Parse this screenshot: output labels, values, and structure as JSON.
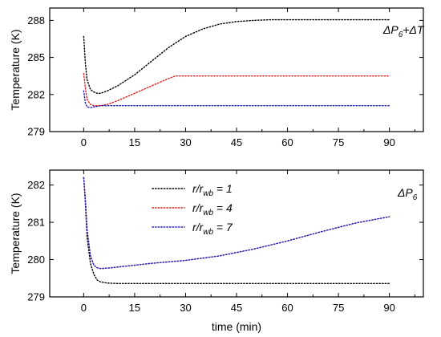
{
  "x_axis_label": "time (min)",
  "chart_data": [
    {
      "type": "line",
      "annotation": {
        "base": "ΔP",
        "sub": "6",
        "tail": "+ΔT"
      },
      "ylabel": "Temperature (K)",
      "xlim": [
        -10,
        100
      ],
      "ylim": [
        279,
        289
      ],
      "xticks": [
        0,
        15,
        30,
        45,
        60,
        75,
        90
      ],
      "yticks": [
        279,
        282,
        285,
        288
      ],
      "x_tick_labels": [
        "0",
        "15",
        "30",
        "45",
        "60",
        "75",
        "90"
      ],
      "y_tick_labels": [
        "279",
        "282",
        "285",
        "288"
      ],
      "series": [
        {
          "name": "r/rwb = 1",
          "color": "#000000",
          "x": [
            0,
            0.5,
            1,
            2,
            3,
            4,
            5,
            7,
            10,
            15,
            20,
            25,
            30,
            35,
            40,
            45,
            50,
            55,
            60,
            70,
            80,
            90
          ],
          "y": [
            286.7,
            284.5,
            283.2,
            282.4,
            282.2,
            282.1,
            282.1,
            282.3,
            282.7,
            283.6,
            284.7,
            285.8,
            286.7,
            287.3,
            287.7,
            287.9,
            288.0,
            288.05,
            288.05,
            288.05,
            288.05,
            288.05
          ]
        },
        {
          "name": "r/rwb = 4",
          "color": "#e02020",
          "x": [
            0,
            0.5,
            1,
            2,
            3,
            5,
            7,
            10,
            15,
            20,
            25,
            27,
            30,
            40,
            50,
            60,
            70,
            80,
            90
          ],
          "y": [
            283.7,
            282.5,
            281.6,
            281.2,
            281.1,
            281.1,
            281.2,
            281.5,
            282.1,
            282.7,
            283.3,
            283.5,
            283.5,
            283.5,
            283.5,
            283.5,
            283.5,
            283.5,
            283.5
          ]
        },
        {
          "name": "r/rwb = 7",
          "color": "#2020c0",
          "x": [
            0,
            0.5,
            1,
            2,
            3,
            5,
            10,
            20,
            30,
            45,
            60,
            75,
            90
          ],
          "y": [
            282.3,
            281.3,
            281.0,
            280.95,
            281.0,
            281.1,
            281.1,
            281.1,
            281.1,
            281.1,
            281.1,
            281.1,
            281.1
          ]
        }
      ]
    },
    {
      "type": "line",
      "annotation": {
        "base": "ΔP",
        "sub": "6",
        "tail": ""
      },
      "ylabel": "Temperature (K)",
      "xlim": [
        -10,
        100
      ],
      "ylim": [
        279,
        282.4
      ],
      "xticks": [
        0,
        15,
        30,
        45,
        60,
        75,
        90
      ],
      "yticks": [
        279,
        280,
        281,
        282
      ],
      "x_tick_labels": [
        "0",
        "15",
        "30",
        "45",
        "60",
        "75",
        "90"
      ],
      "y_tick_labels": [
        "279",
        "280",
        "281",
        "282"
      ],
      "legend": {
        "position": "top-left",
        "entries": [
          {
            "base": "r/r",
            "sub": "wb",
            "tail": " = 1",
            "color": "#000000"
          },
          {
            "base": "r/r",
            "sub": "wb",
            "tail": " = 4",
            "color": "#e02020"
          },
          {
            "base": "r/r",
            "sub": "wb",
            "tail": " = 7",
            "color": "#2020c0"
          }
        ]
      },
      "series": [
        {
          "name": "r/rwb = 1",
          "color": "#000000",
          "x": [
            0,
            0.5,
            1,
            2,
            3,
            4,
            5,
            7,
            10,
            20,
            30,
            45,
            60,
            75,
            90
          ],
          "y": [
            282.2,
            281.5,
            280.6,
            279.9,
            279.6,
            279.45,
            279.4,
            279.37,
            279.36,
            279.36,
            279.36,
            279.36,
            279.36,
            279.36,
            279.36
          ]
        },
        {
          "name": "r/rwb = 4",
          "color": "#e02020",
          "x": [
            0,
            0.5,
            1,
            2,
            3,
            4,
            5,
            7,
            10,
            15,
            20,
            30,
            40,
            50,
            60,
            70,
            80,
            90
          ],
          "y": [
            282.2,
            281.6,
            280.8,
            280.1,
            279.85,
            279.78,
            279.76,
            279.77,
            279.8,
            279.85,
            279.9,
            279.98,
            280.1,
            280.28,
            280.5,
            280.75,
            280.98,
            281.15
          ]
        },
        {
          "name": "r/rwb = 7",
          "color": "#2020c0",
          "x": [
            0,
            0.5,
            1,
            2,
            3,
            4,
            5,
            7,
            10,
            15,
            20,
            30,
            40,
            50,
            60,
            70,
            80,
            90
          ],
          "y": [
            282.2,
            281.6,
            280.8,
            280.1,
            279.85,
            279.78,
            279.76,
            279.77,
            279.8,
            279.85,
            279.9,
            279.98,
            280.1,
            280.28,
            280.5,
            280.75,
            280.98,
            281.15
          ]
        }
      ]
    }
  ]
}
